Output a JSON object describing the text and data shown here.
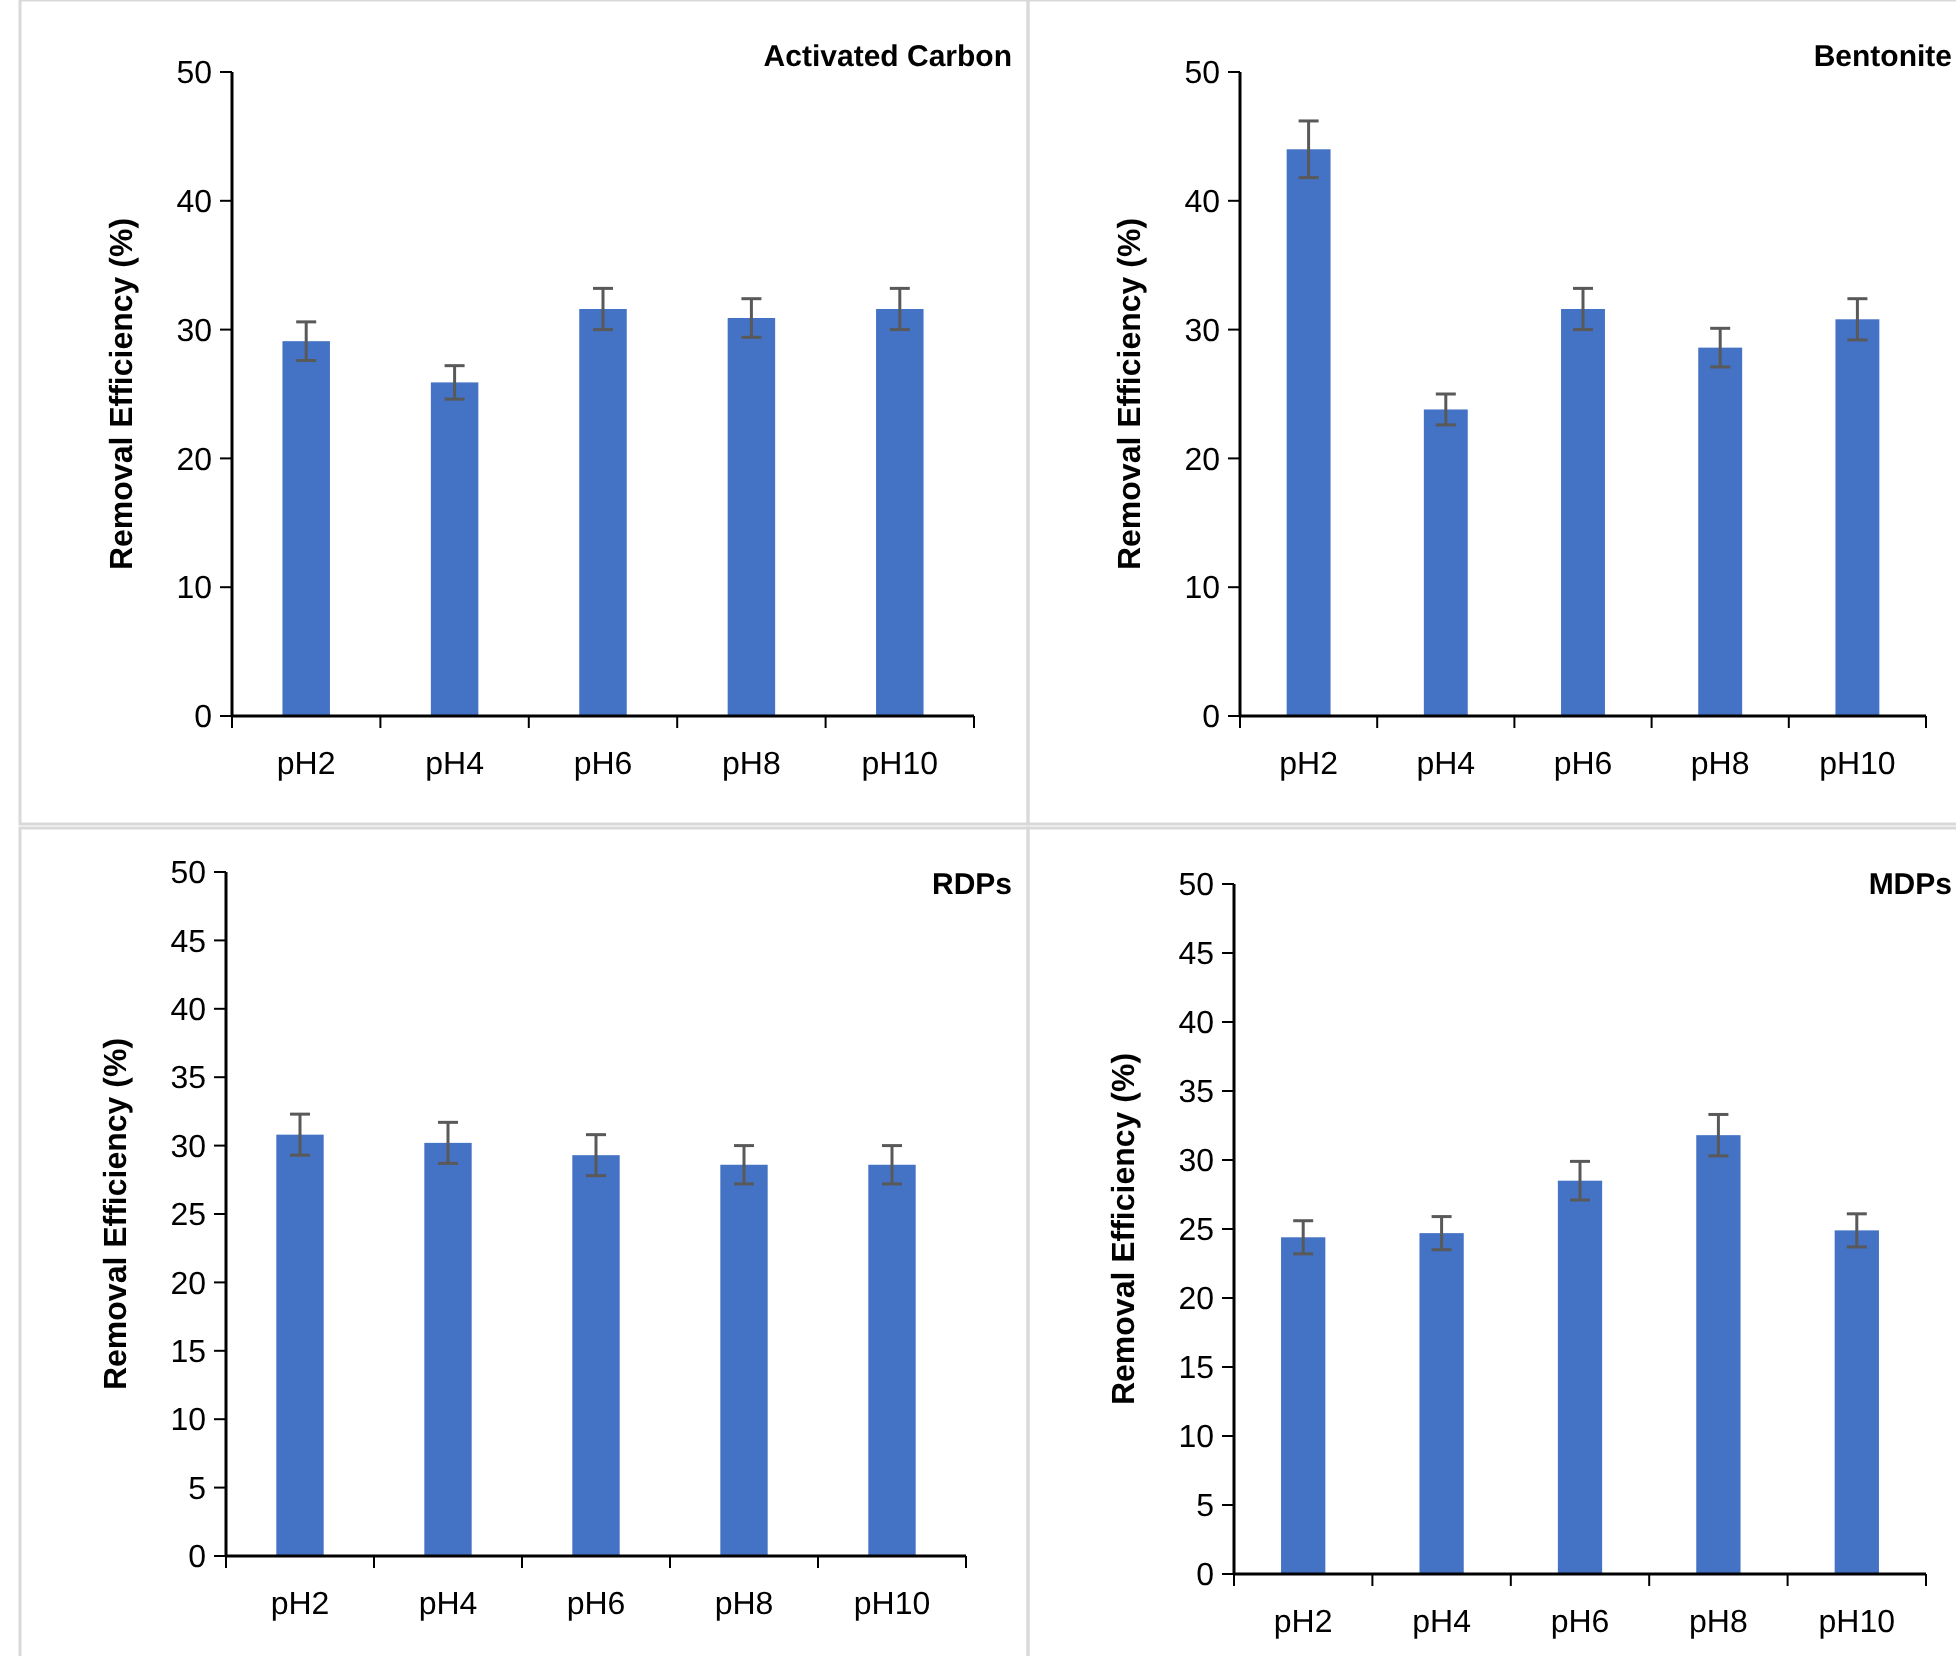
{
  "chart_data": [
    {
      "type": "bar",
      "title": "Activated Carbon",
      "ylabel": "Removal Efficiency (%)",
      "categories": [
        "pH2",
        "pH4",
        "pH6",
        "pH8",
        "pH10"
      ],
      "color": "#4472c4",
      "values": [
        29.1,
        25.9,
        31.6,
        30.9,
        31.6
      ],
      "errors": [
        1.5,
        1.3,
        1.6,
        1.5,
        1.6
      ],
      "ylim": [
        0,
        50
      ],
      "yticks": [
        0,
        10,
        20,
        30,
        40,
        50
      ],
      "grid": false
    },
    {
      "type": "bar",
      "title": "Bentonite",
      "ylabel": "Removal Efficiency (%)",
      "categories": [
        "pH2",
        "pH4",
        "pH6",
        "pH8",
        "pH10"
      ],
      "color": "#4472c4",
      "values": [
        44.0,
        23.8,
        31.6,
        28.6,
        30.8
      ],
      "errors": [
        2.2,
        1.2,
        1.6,
        1.5,
        1.6
      ],
      "ylim": [
        0,
        50
      ],
      "yticks": [
        0,
        10,
        20,
        30,
        40,
        50
      ],
      "grid": false
    },
    {
      "type": "bar",
      "title": "RDPs",
      "ylabel": "Removal Efficiency (%)",
      "categories": [
        "pH2",
        "pH4",
        "pH6",
        "pH8",
        "pH10"
      ],
      "color": "#4472c4",
      "values": [
        30.8,
        30.2,
        29.3,
        28.6,
        28.6
      ],
      "errors": [
        1.5,
        1.5,
        1.5,
        1.4,
        1.4
      ],
      "ylim": [
        0,
        50
      ],
      "yticks": [
        0,
        5,
        10,
        15,
        20,
        25,
        30,
        35,
        40,
        45,
        50
      ],
      "grid": false
    },
    {
      "type": "bar",
      "title": "MDPs",
      "ylabel": "Removal Efficiency (%)",
      "categories": [
        "pH2",
        "pH4",
        "pH6",
        "pH8",
        "pH10"
      ],
      "color": "#4472c4",
      "values": [
        24.4,
        24.7,
        28.5,
        31.8,
        24.9
      ],
      "errors": [
        1.2,
        1.2,
        1.4,
        1.5,
        1.2
      ],
      "ylim": [
        0,
        50
      ],
      "yticks": [
        0,
        5,
        10,
        15,
        20,
        25,
        30,
        35,
        40,
        45,
        50
      ],
      "grid": false
    }
  ]
}
